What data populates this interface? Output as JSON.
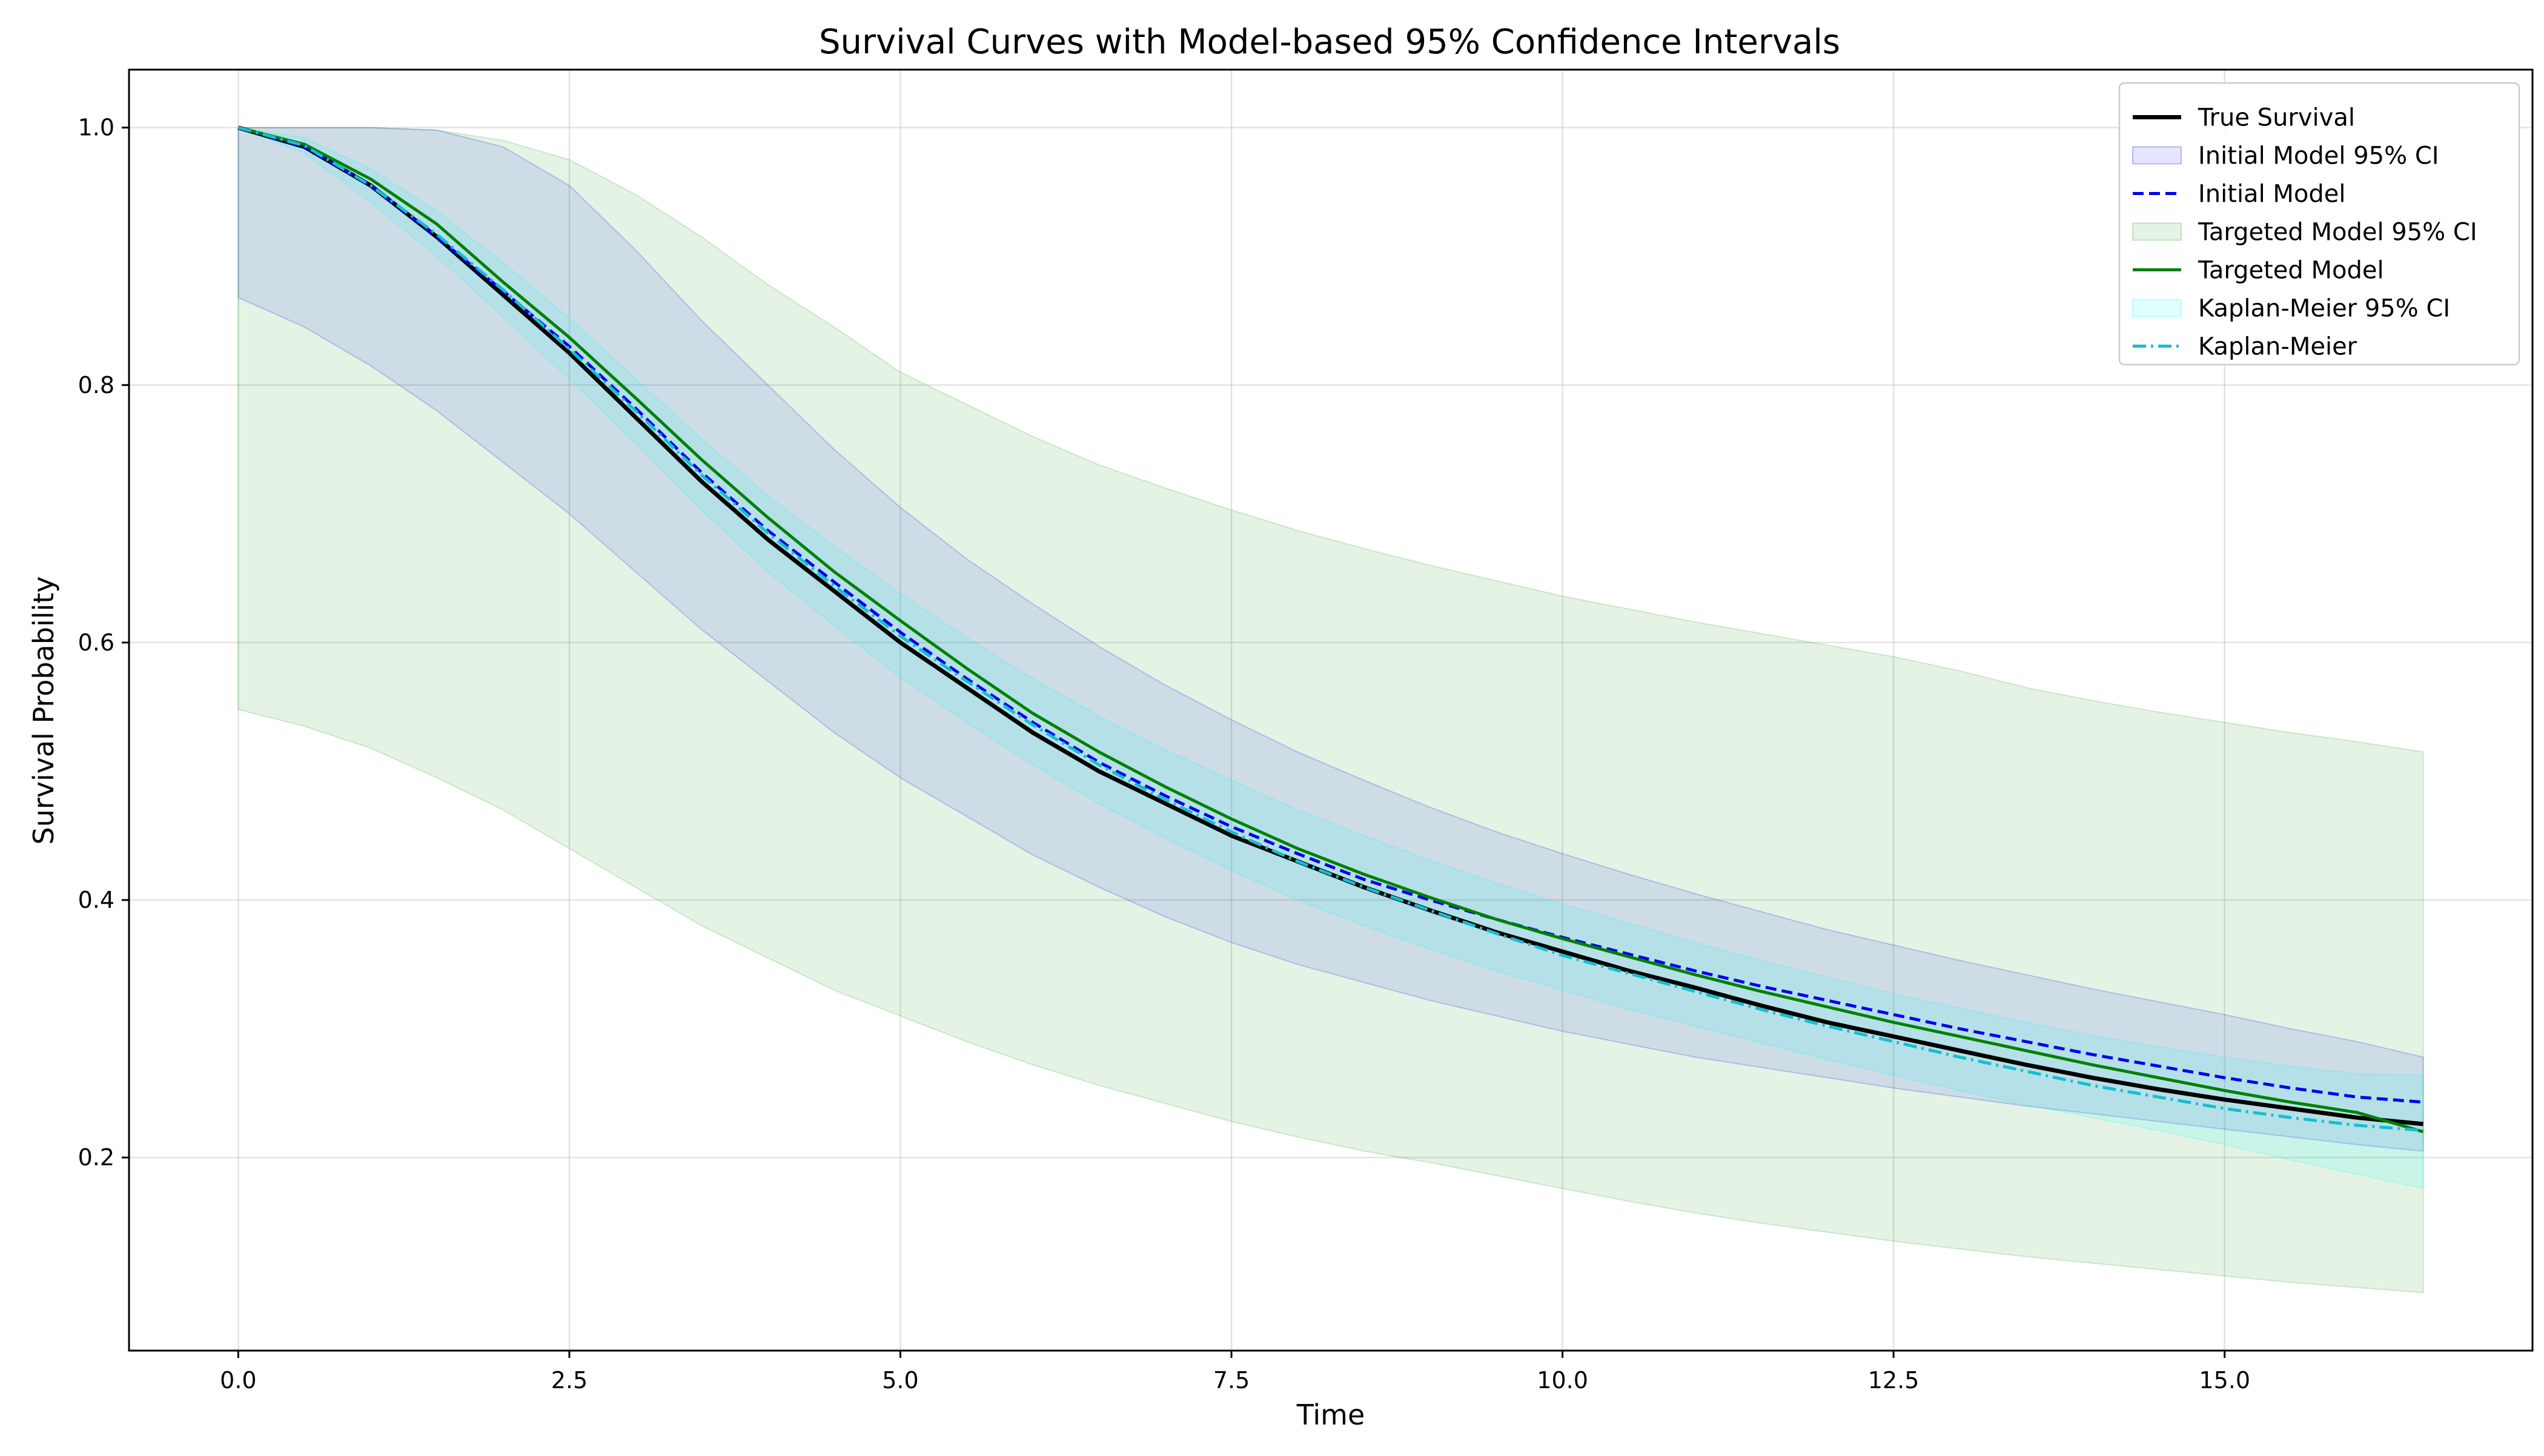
{
  "chart_data": {
    "type": "line",
    "title": "Survival Curves with Model-based 95% Confidence Intervals",
    "xlabel": "Time",
    "ylabel": "Survival Probability",
    "xlim": [
      -0.825,
      17.325
    ],
    "ylim": [
      0.05,
      1.045
    ],
    "xticks": [
      0.0,
      2.5,
      5.0,
      7.5,
      10.0,
      12.5,
      15.0
    ],
    "xtick_labels": [
      "0.0",
      "2.5",
      "5.0",
      "7.5",
      "10.0",
      "12.5",
      "15.0"
    ],
    "yticks": [
      0.2,
      0.4,
      0.6,
      0.8,
      1.0
    ],
    "ytick_labels": [
      "0.2",
      "0.4",
      "0.6",
      "0.8",
      "1.0"
    ],
    "grid": true,
    "legend_position": "top-right",
    "x": [
      0,
      0.5,
      1,
      1.5,
      2,
      2.5,
      3,
      3.5,
      4,
      4.5,
      5,
      5.5,
      6,
      6.5,
      7,
      7.5,
      8,
      8.5,
      9,
      9.5,
      10,
      10.5,
      11,
      11.5,
      12,
      12.5,
      13,
      13.5,
      14,
      14.5,
      15,
      15.5,
      16,
      16.5
    ],
    "series": [
      {
        "name": "True Survival",
        "kind": "line",
        "color": "#000000",
        "dash": "solid",
        "values": [
          1.0,
          0.985,
          0.955,
          0.915,
          0.87,
          0.825,
          0.775,
          0.725,
          0.68,
          0.64,
          0.6,
          0.565,
          0.53,
          0.5,
          0.475,
          0.45,
          0.43,
          0.41,
          0.392,
          0.375,
          0.36,
          0.345,
          0.332,
          0.318,
          0.305,
          0.294,
          0.283,
          0.272,
          0.262,
          0.253,
          0.245,
          0.238,
          0.231,
          0.226
        ]
      },
      {
        "name": "Initial Model 95% CI",
        "kind": "band",
        "color": "#0000ff",
        "opacity": 0.1,
        "lower": [
          0.868,
          0.845,
          0.815,
          0.78,
          0.74,
          0.7,
          0.655,
          0.61,
          0.57,
          0.53,
          0.495,
          0.465,
          0.435,
          0.41,
          0.387,
          0.367,
          0.35,
          0.336,
          0.322,
          0.31,
          0.298,
          0.288,
          0.278,
          0.27,
          0.262,
          0.254,
          0.247,
          0.24,
          0.234,
          0.228,
          0.222,
          0.216,
          0.21,
          0.205
        ],
        "upper": [
          1.0,
          1.0,
          1.0,
          0.998,
          0.985,
          0.955,
          0.905,
          0.85,
          0.8,
          0.75,
          0.705,
          0.665,
          0.63,
          0.597,
          0.567,
          0.54,
          0.515,
          0.493,
          0.472,
          0.453,
          0.436,
          0.42,
          0.405,
          0.391,
          0.377,
          0.365,
          0.353,
          0.342,
          0.331,
          0.321,
          0.311,
          0.3,
          0.29,
          0.278
        ]
      },
      {
        "name": "Initial Model",
        "kind": "line",
        "color": "#0000ee",
        "dash": "dashed",
        "values": [
          1.0,
          0.985,
          0.955,
          0.915,
          0.873,
          0.83,
          0.782,
          0.732,
          0.687,
          0.647,
          0.608,
          0.572,
          0.538,
          0.507,
          0.481,
          0.457,
          0.436,
          0.416,
          0.4,
          0.385,
          0.371,
          0.358,
          0.345,
          0.333,
          0.322,
          0.311,
          0.3,
          0.29,
          0.28,
          0.271,
          0.262,
          0.254,
          0.247,
          0.243
        ]
      },
      {
        "name": "Targeted Model 95% CI",
        "kind": "band",
        "color": "#2ca02c",
        "opacity": 0.12,
        "lower": [
          0.548,
          0.535,
          0.518,
          0.495,
          0.47,
          0.44,
          0.41,
          0.38,
          0.355,
          0.33,
          0.31,
          0.29,
          0.272,
          0.256,
          0.242,
          0.228,
          0.216,
          0.205,
          0.196,
          0.186,
          0.176,
          0.166,
          0.157,
          0.149,
          0.142,
          0.135,
          0.129,
          0.123,
          0.118,
          0.113,
          0.108,
          0.103,
          0.099,
          0.095
        ],
        "upper": [
          1.0,
          1.0,
          1.0,
          0.998,
          0.99,
          0.975,
          0.948,
          0.915,
          0.878,
          0.845,
          0.81,
          0.785,
          0.76,
          0.738,
          0.72,
          0.703,
          0.687,
          0.673,
          0.66,
          0.648,
          0.636,
          0.626,
          0.616,
          0.607,
          0.598,
          0.589,
          0.578,
          0.565,
          0.555,
          0.546,
          0.538,
          0.53,
          0.523,
          0.515
        ]
      },
      {
        "name": "Targeted Model",
        "kind": "line",
        "color": "#008000",
        "dash": "solid",
        "values": [
          1.0,
          0.987,
          0.96,
          0.925,
          0.88,
          0.837,
          0.79,
          0.742,
          0.697,
          0.655,
          0.617,
          0.58,
          0.545,
          0.515,
          0.488,
          0.463,
          0.44,
          0.42,
          0.402,
          0.385,
          0.37,
          0.356,
          0.342,
          0.329,
          0.317,
          0.305,
          0.294,
          0.283,
          0.272,
          0.262,
          0.252,
          0.243,
          0.235,
          0.22
        ]
      },
      {
        "name": "Kaplan-Meier 95% CI",
        "kind": "band",
        "color": "#00ffff",
        "opacity": 0.12,
        "lower": [
          1.0,
          0.98,
          0.942,
          0.9,
          0.853,
          0.805,
          0.755,
          0.703,
          0.655,
          0.613,
          0.573,
          0.538,
          0.505,
          0.475,
          0.448,
          0.423,
          0.4,
          0.38,
          0.362,
          0.345,
          0.33,
          0.315,
          0.302,
          0.289,
          0.276,
          0.264,
          0.252,
          0.241,
          0.231,
          0.221,
          0.21,
          0.198,
          0.187,
          0.176
        ],
        "upper": [
          1.0,
          0.992,
          0.968,
          0.935,
          0.895,
          0.852,
          0.805,
          0.758,
          0.714,
          0.675,
          0.638,
          0.604,
          0.572,
          0.543,
          0.517,
          0.493,
          0.47,
          0.45,
          0.431,
          0.413,
          0.397,
          0.382,
          0.367,
          0.353,
          0.34,
          0.327,
          0.316,
          0.305,
          0.295,
          0.286,
          0.278,
          0.271,
          0.265,
          0.264
        ]
      },
      {
        "name": "Kaplan-Meier",
        "kind": "line",
        "color": "#17becf",
        "dash": "dashdot",
        "values": [
          1.0,
          0.986,
          0.955,
          0.917,
          0.874,
          0.828,
          0.78,
          0.73,
          0.685,
          0.644,
          0.605,
          0.57,
          0.536,
          0.505,
          0.478,
          0.453,
          0.43,
          0.41,
          0.392,
          0.374,
          0.357,
          0.343,
          0.329,
          0.315,
          0.302,
          0.29,
          0.278,
          0.267,
          0.256,
          0.247,
          0.238,
          0.231,
          0.225,
          0.221
        ]
      }
    ]
  }
}
